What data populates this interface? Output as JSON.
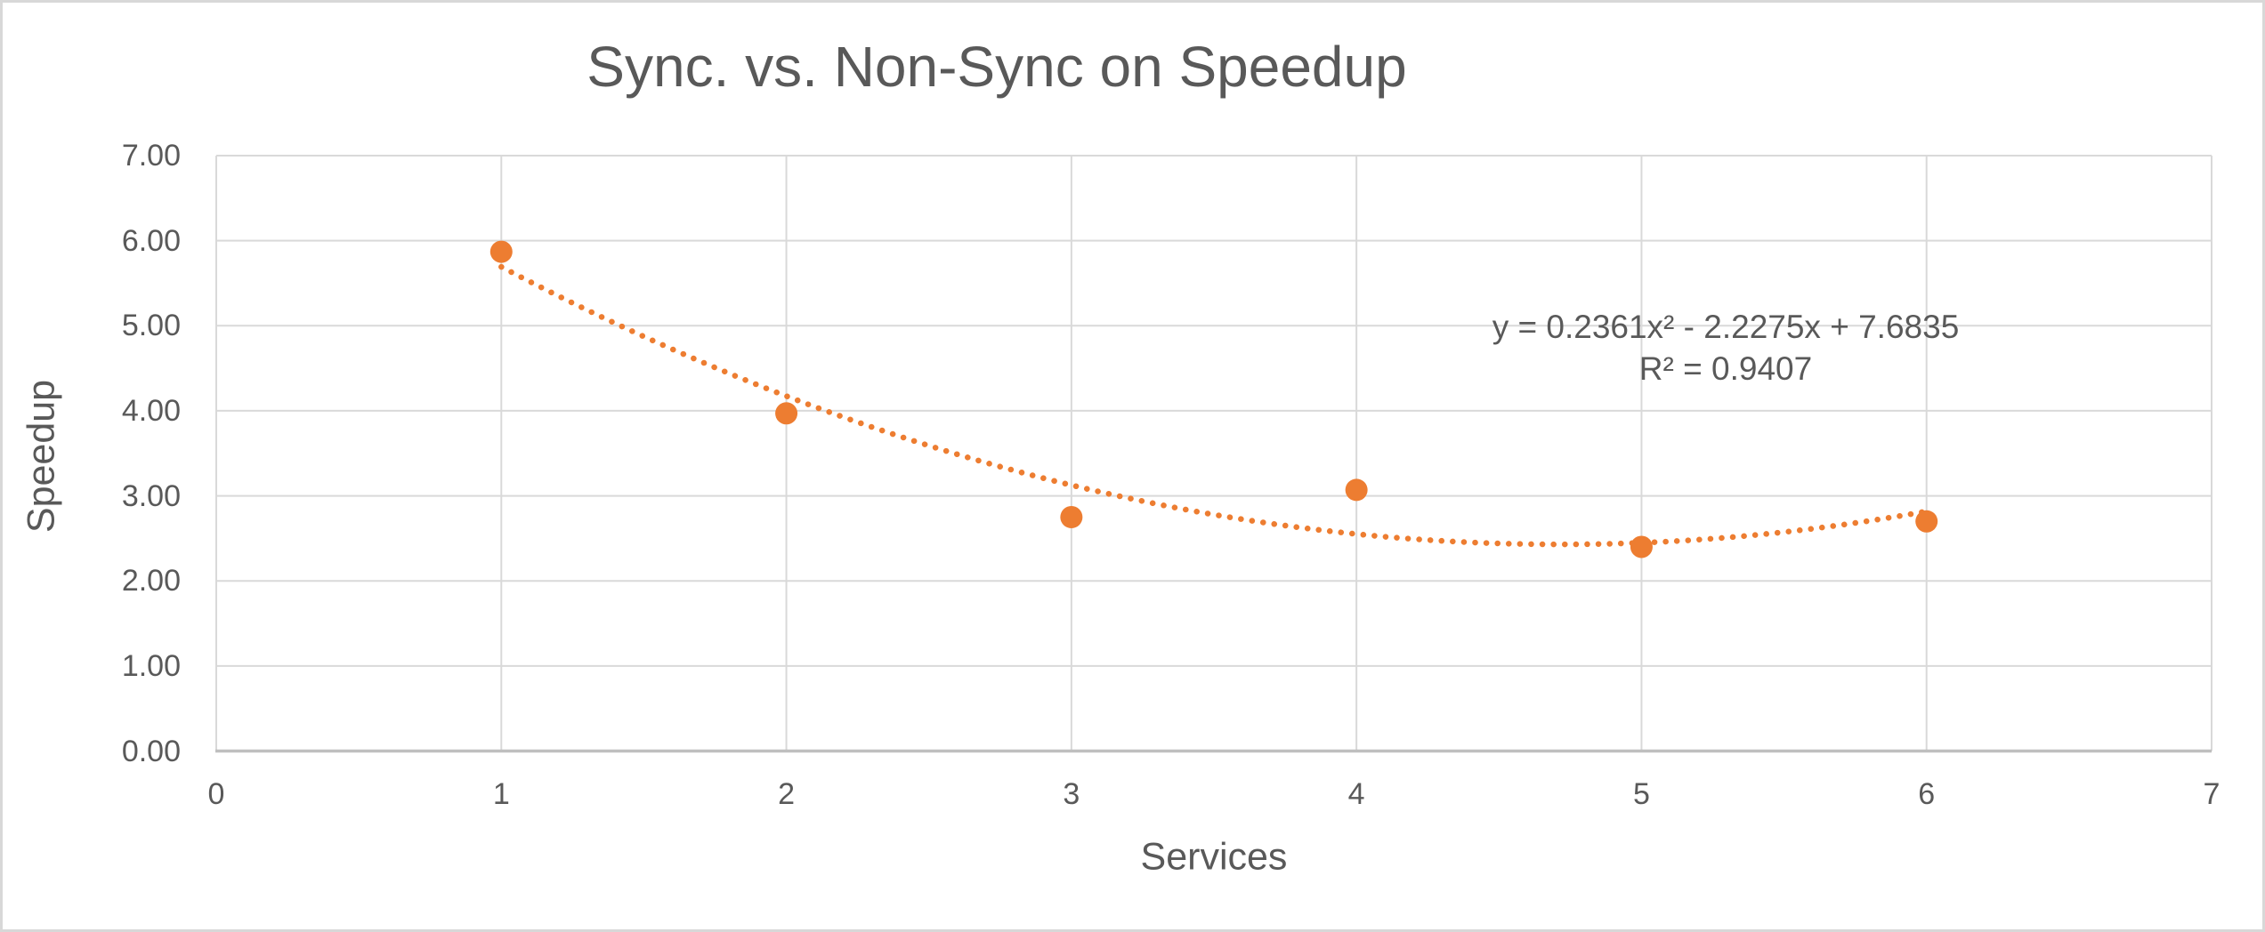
{
  "window": {
    "background": "#ffffff",
    "border_color": "#d8d8d8"
  },
  "chart_data": {
    "type": "scatter",
    "title": "Sync. vs. Non-Sync on Speedup",
    "xlabel": "Services",
    "ylabel": "Speedup",
    "xlim": [
      0,
      7
    ],
    "ylim": [
      0,
      7
    ],
    "x_ticks": [
      "0",
      "1",
      "2",
      "3",
      "4",
      "5",
      "6",
      "7"
    ],
    "y_ticks": [
      "0.00",
      "1.00",
      "2.00",
      "3.00",
      "4.00",
      "5.00",
      "6.00",
      "7.00"
    ],
    "grid": true,
    "legend": "none",
    "series": [
      {
        "name": "Speedup",
        "marker": "circle",
        "marker_color": "#ED7D31",
        "marker_radius": 12.5,
        "points": [
          {
            "x": 1,
            "y": 5.87
          },
          {
            "x": 2,
            "y": 3.97
          },
          {
            "x": 3,
            "y": 2.75
          },
          {
            "x": 4,
            "y": 3.07
          },
          {
            "x": 5,
            "y": 2.4
          },
          {
            "x": 6,
            "y": 2.7
          }
        ]
      }
    ],
    "trendline": {
      "type": "polynomial",
      "order": 2,
      "coefficients": {
        "a": 0.2361,
        "b": -2.2275,
        "c": 7.6835
      },
      "x_range": [
        1,
        6
      ],
      "style": "dotted",
      "color": "#ED7D31",
      "equation_label": "y = 0.2361x² - 2.2275x + 7.6835",
      "r_squared_label": "R² = 0.9407"
    },
    "colors": {
      "text": "#595959",
      "gridline": "#D9D9D9",
      "axis_line": "#BFBFBF"
    }
  }
}
